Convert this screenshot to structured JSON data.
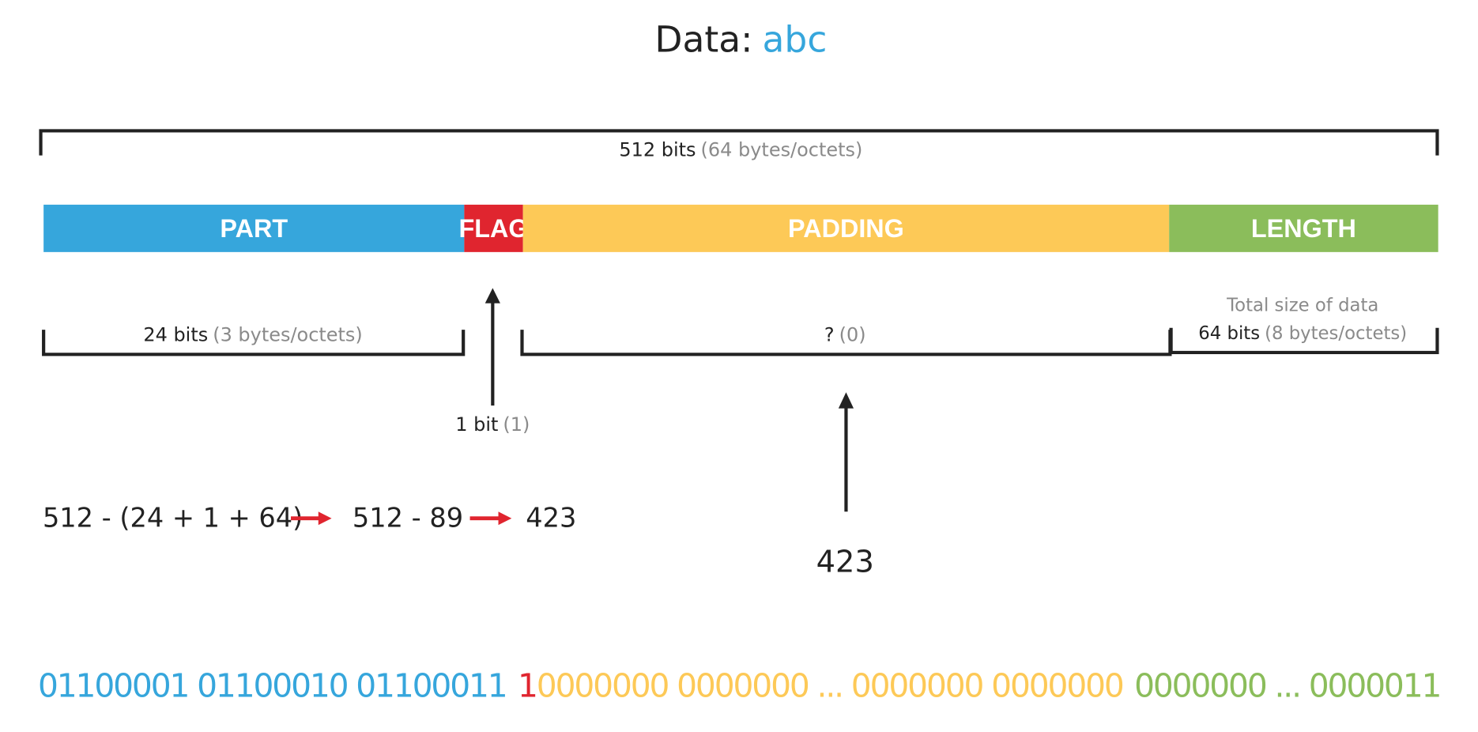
{
  "title": {
    "label": "Data:",
    "value": "abc",
    "value_color": "#36a6dc"
  },
  "total": {
    "bits": "512 bits",
    "bytes": "(64 bytes/octets)"
  },
  "segments": [
    {
      "label": "PART",
      "color": "#36a6dc"
    },
    {
      "label": "FLAG",
      "color": "#e0252f"
    },
    {
      "label": "PADDING",
      "color": "#fdc957"
    },
    {
      "label": "LENGTH",
      "color": "#8bbd5b"
    }
  ],
  "part_size": {
    "bits": "24 bits",
    "bytes": "(3 bytes/octets)"
  },
  "flag_size": {
    "bits": "1 bit",
    "bytes": "(1)"
  },
  "padding_size": {
    "bits": "?",
    "bytes": "(0)"
  },
  "length_size": {
    "note": "Total size of data",
    "bits": "64 bits",
    "bytes": "(8 bytes/octets)"
  },
  "padding_result": "423",
  "equation": {
    "steps": [
      "512 - (24 + 1 + 64)",
      "512 - 89",
      "423"
    ],
    "arrow_color": "#e0252f"
  },
  "binary": [
    {
      "text": "01100001 01100010 01100011",
      "color": "#36a6dc"
    },
    {
      "text": "1",
      "color": "#e0252f"
    },
    {
      "text": "0000000 0000000 ... 0000000 0000000",
      "color": "#fdc957"
    },
    {
      "text": "0000000 ... 0000011",
      "color": "#8bbd5b"
    }
  ]
}
